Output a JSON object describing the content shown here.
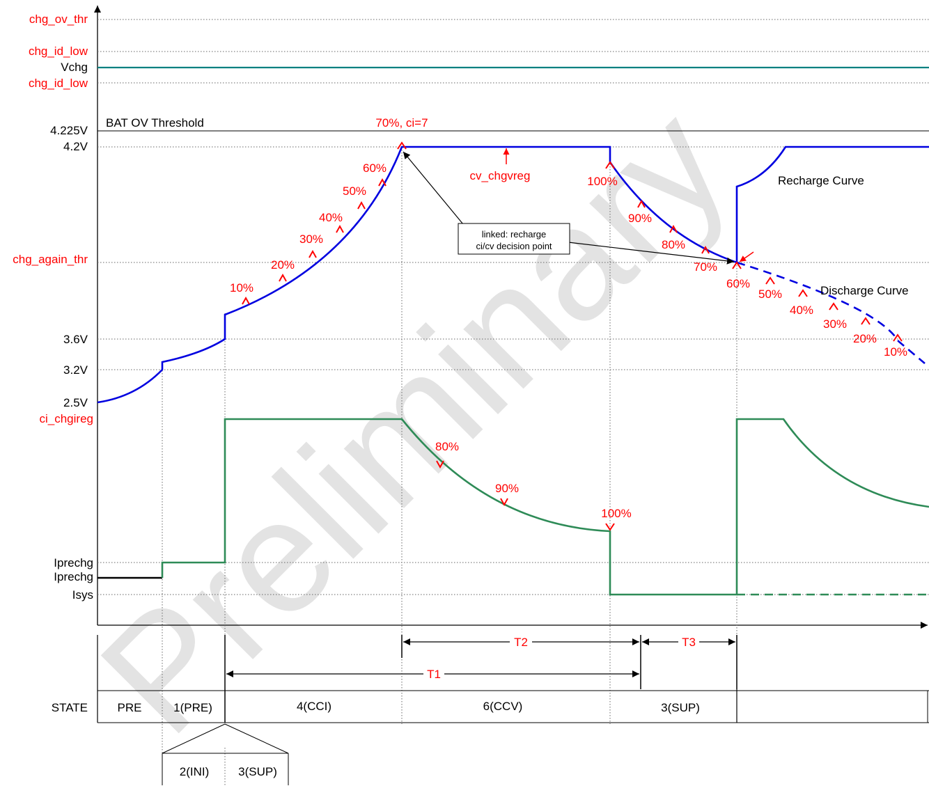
{
  "watermark": "Preliminary",
  "colors": {
    "red": "#ff0000",
    "voltage": "#0000e0",
    "current": "#2e8b57",
    "vchg_line": "#008080",
    "black": "#000000",
    "gridline": "#666666",
    "watermark": "#e3e3e3"
  },
  "y_labels": {
    "chg_ov_thr": "chg_ov_thr",
    "chg_id_low_top": "chg_id_low",
    "vchg": "Vchg",
    "chg_id_low_bottom": "chg_id_low",
    "v4225": "4.225V",
    "v42": "4.2V",
    "chg_again_thr": "chg_again_thr",
    "v36": "3.6V",
    "v32": "3.2V",
    "v25": "2.5V",
    "ci_chgireg": "ci_chgireg",
    "iprechg_top": "Iprechg",
    "iprechg_bottom": "Iprechg",
    "isys": "Isys"
  },
  "annotations": {
    "bat_ov_threshold": "BAT OV Threshold",
    "peak": "70%, ci=7",
    "cv_chgvreg": "cv_chgvreg",
    "recharge_curve": "Recharge Curve",
    "discharge_curve": "Discharge Curve",
    "linked_line1": "linked: recharge",
    "linked_line2": "ci/cv decision point"
  },
  "charge_markers": [
    "10%",
    "20%",
    "30%",
    "40%",
    "50%",
    "60%"
  ],
  "cv_markers": [
    "100%",
    "90%",
    "80%",
    "70%"
  ],
  "discharge_markers": [
    "60%",
    "50%",
    "40%",
    "30%",
    "20%",
    "10%"
  ],
  "current_markers": [
    "80%",
    "90%",
    "100%"
  ],
  "timing": {
    "t1": "T1",
    "t2": "T2",
    "t3": "T3"
  },
  "states": {
    "header": "STATE",
    "pre": "PRE",
    "pre1": "1(PRE)",
    "cci": "4(CCI)",
    "ccv": "6(CCV)",
    "sup": "3(SUP)",
    "ini_sub": "2(INI)",
    "sup_sub": "3(SUP)"
  }
}
